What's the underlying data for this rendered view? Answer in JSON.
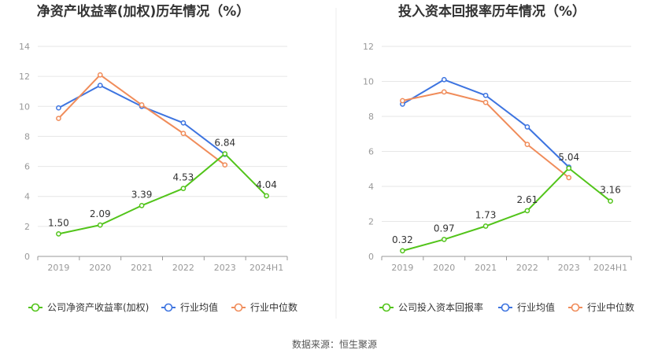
{
  "source_label": "数据来源：恒生聚源",
  "colors": {
    "company": "#52c41a",
    "industry_avg": "#3d74e0",
    "industry_median": "#f08c5a",
    "grid": "#e6e6e6",
    "axis": "#999999"
  },
  "chart_data": [
    {
      "type": "line",
      "title": "净资产收益率(加权)历年情况（%）",
      "categories": [
        "2019",
        "2020",
        "2021",
        "2022",
        "2023",
        "2024H1"
      ],
      "ylim": [
        0,
        14
      ],
      "yticks": [
        0,
        2,
        4,
        6,
        8,
        10,
        12,
        14
      ],
      "grid": true,
      "legend_position": "bottom",
      "series": [
        {
          "name": "公司净资产收益率(加权)",
          "color_key": "company",
          "values": [
            1.5,
            2.09,
            3.39,
            4.53,
            6.84,
            4.04
          ],
          "labels": [
            "1.50",
            "2.09",
            "3.39",
            "4.53",
            "6.84",
            "4.04"
          ]
        },
        {
          "name": "行业均值",
          "color_key": "industry_avg",
          "values": [
            9.9,
            11.4,
            10.0,
            8.9,
            6.8,
            null
          ]
        },
        {
          "name": "行业中位数",
          "color_key": "industry_median",
          "values": [
            9.2,
            12.1,
            10.1,
            8.2,
            6.1,
            null
          ]
        }
      ]
    },
    {
      "type": "line",
      "title": "投入资本回报率历年情况（%）",
      "categories": [
        "2019",
        "2020",
        "2021",
        "2022",
        "2023",
        "2024H1"
      ],
      "ylim": [
        0,
        12
      ],
      "yticks": [
        0,
        2,
        4,
        6,
        8,
        10,
        12
      ],
      "grid": true,
      "legend_position": "bottom",
      "series": [
        {
          "name": "公司投入资本回报率",
          "color_key": "company",
          "values": [
            0.32,
            0.97,
            1.73,
            2.61,
            5.04,
            3.16
          ],
          "labels": [
            "0.32",
            "0.97",
            "1.73",
            "2.61",
            "5.04",
            "3.16"
          ]
        },
        {
          "name": "行业均值",
          "color_key": "industry_avg",
          "values": [
            8.7,
            10.1,
            9.2,
            7.4,
            5.1,
            null
          ]
        },
        {
          "name": "行业中位数",
          "color_key": "industry_median",
          "values": [
            8.9,
            9.4,
            8.8,
            6.4,
            4.5,
            null
          ]
        }
      ]
    }
  ]
}
